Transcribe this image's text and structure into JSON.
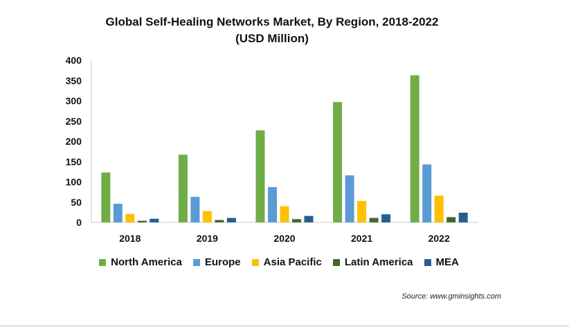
{
  "chart_data": {
    "type": "bar",
    "title": "Global Self-Healing Networks Market, By Region, 2018-2022",
    "subtitle": "(USD Million)",
    "categories": [
      "2018",
      "2019",
      "2020",
      "2021",
      "2022"
    ],
    "series": [
      {
        "name": "North America",
        "color": "#70ad47",
        "values": [
          123,
          167,
          227,
          297,
          363
        ]
      },
      {
        "name": "Europe",
        "color": "#5b9bd5",
        "values": [
          46,
          63,
          87,
          116,
          143
        ]
      },
      {
        "name": "Asia Pacific",
        "color": "#ffc000",
        "values": [
          21,
          28,
          40,
          53,
          66
        ]
      },
      {
        "name": "Latin America",
        "color": "#43682b",
        "values": [
          4,
          6,
          8,
          11,
          13
        ]
      },
      {
        "name": "MEA",
        "color": "#255e91",
        "values": [
          9,
          11,
          16,
          20,
          24
        ]
      }
    ],
    "ylim": [
      0,
      400
    ],
    "yticks": [
      0,
      50,
      100,
      150,
      200,
      250,
      300,
      350,
      400
    ],
    "grid": false,
    "legend": "bottom"
  },
  "source": "Source: www.gminsights.com"
}
